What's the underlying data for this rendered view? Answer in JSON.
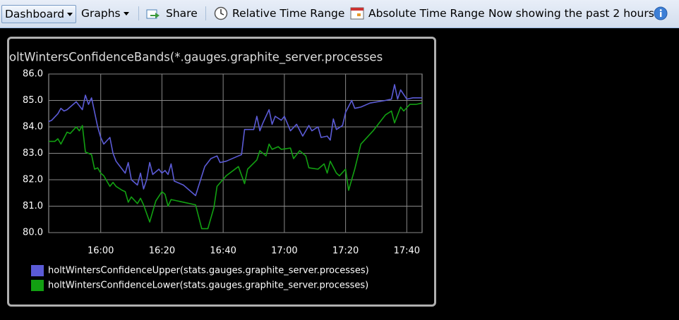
{
  "toolbar": {
    "dashboard": "Dashboard",
    "graphs": "Graphs",
    "share": "Share",
    "relative": "Relative Time Range",
    "absolute": "Absolute Time Range",
    "status": "Now showing the past 2 hours"
  },
  "chart_data": {
    "type": "line",
    "title": "oltWintersConfidenceBands(*.gauges.graphite_server.processes",
    "xlim": [
      "15:43",
      "17:45"
    ],
    "xticks": [
      "16:00",
      "16:20",
      "16:40",
      "17:00",
      "17:20",
      "17:40"
    ],
    "ylim": [
      80,
      86
    ],
    "yticks": [
      {
        "value": 80,
        "label": "80.0"
      },
      {
        "value": 81,
        "label": "81.0"
      },
      {
        "value": 82,
        "label": "82.0"
      },
      {
        "value": 83,
        "label": "83.0"
      },
      {
        "value": 84,
        "label": "84.0"
      },
      {
        "value": 85,
        "label": "85.0"
      },
      {
        "value": 86,
        "label": "86.0"
      }
    ],
    "grid": true,
    "series": [
      {
        "name": "holtWintersConfidenceUpper(stats.gauges.graphite_server.processes)",
        "color": "#5b5bd6",
        "x": [
          "15:43",
          "15:44",
          "15:46",
          "15:47",
          "15:48",
          "15:49",
          "15:52",
          "15:54",
          "15:55",
          "15:56",
          "15:57",
          "15:59",
          "16:00",
          "16:01",
          "16:03",
          "16:04",
          "16:05",
          "16:06",
          "16:08",
          "16:09",
          "16:10",
          "16:12",
          "16:13",
          "16:14",
          "16:15",
          "16:16",
          "16:17",
          "16:19",
          "16:20",
          "16:21",
          "16:22",
          "16:23",
          "16:24",
          "16:27",
          "16:31",
          "16:34",
          "16:36",
          "16:38",
          "16:39",
          "16:41",
          "16:45",
          "16:46",
          "16:47",
          "16:50",
          "16:51",
          "16:52",
          "16:53",
          "16:55",
          "16:56",
          "16:57",
          "16:59",
          "17:00",
          "17:02",
          "17:04",
          "17:06",
          "17:08",
          "17:09",
          "17:11",
          "17:12",
          "17:14",
          "17:15",
          "17:16",
          "17:17",
          "17:19",
          "17:20",
          "17:22",
          "17:23",
          "17:25",
          "17:28",
          "17:33",
          "17:35",
          "17:36",
          "17:37",
          "17:38",
          "17:40",
          "17:42",
          "17:45"
        ],
        "values": [
          84.2,
          84.25,
          84.5,
          84.7,
          84.6,
          84.65,
          84.95,
          84.65,
          85.2,
          84.85,
          85.1,
          84.0,
          83.6,
          83.35,
          83.6,
          83.0,
          82.7,
          82.55,
          82.25,
          82.65,
          82.0,
          81.8,
          82.25,
          81.65,
          82.0,
          82.65,
          82.2,
          82.4,
          82.25,
          82.35,
          82.2,
          82.6,
          81.95,
          81.8,
          81.4,
          82.5,
          82.8,
          82.9,
          82.65,
          82.7,
          82.9,
          82.95,
          83.9,
          83.9,
          84.4,
          83.85,
          84.15,
          84.65,
          84.1,
          84.4,
          84.25,
          84.4,
          83.85,
          84.1,
          83.65,
          84.05,
          83.85,
          84.0,
          83.6,
          83.65,
          83.5,
          84.3,
          83.9,
          84.05,
          84.55,
          85.0,
          84.7,
          84.75,
          84.9,
          85.0,
          85.05,
          85.6,
          85.05,
          85.4,
          85.05,
          85.1,
          85.1
        ]
      },
      {
        "name": "holtWintersConfidenceLower(stats.gauges.graphite_server.processes)",
        "color": "#12a012",
        "x": [
          "15:43",
          "15:45",
          "15:46",
          "15:47",
          "15:49",
          "15:50",
          "15:52",
          "15:53",
          "15:54",
          "15:55",
          "15:57",
          "15:58",
          "15:59",
          "16:00",
          "16:01",
          "16:03",
          "16:04",
          "16:05",
          "16:07",
          "16:08",
          "16:09",
          "16:10",
          "16:12",
          "16:13",
          "16:14",
          "16:16",
          "16:17",
          "16:18",
          "16:20",
          "16:21",
          "16:22",
          "16:23",
          "16:25",
          "16:31",
          "16:33",
          "16:35",
          "16:37",
          "16:38",
          "16:41",
          "16:45",
          "16:47",
          "16:48",
          "16:51",
          "16:52",
          "16:54",
          "16:55",
          "16:56",
          "16:58",
          "16:59",
          "17:02",
          "17:03",
          "17:05",
          "17:07",
          "17:08",
          "17:11",
          "17:13",
          "17:14",
          "17:15",
          "17:17",
          "17:18",
          "17:20",
          "17:21",
          "17:23",
          "17:25",
          "17:29",
          "17:33",
          "17:35",
          "17:36",
          "17:38",
          "17:39",
          "17:41",
          "17:43",
          "17:45"
        ],
        "values": [
          83.45,
          83.45,
          83.55,
          83.35,
          83.8,
          83.75,
          84.0,
          83.85,
          84.05,
          83.05,
          82.95,
          82.4,
          82.45,
          82.25,
          82.15,
          81.75,
          81.9,
          81.75,
          81.6,
          81.55,
          81.15,
          81.35,
          81.1,
          81.3,
          81.05,
          80.4,
          80.8,
          81.2,
          81.55,
          81.45,
          81.0,
          81.25,
          81.2,
          81.05,
          80.15,
          80.15,
          80.95,
          81.75,
          82.15,
          82.5,
          81.85,
          82.4,
          82.75,
          83.1,
          82.9,
          83.35,
          83.15,
          83.25,
          83.15,
          83.2,
          82.8,
          83.1,
          82.9,
          82.45,
          82.4,
          82.6,
          82.25,
          82.7,
          82.25,
          82.15,
          82.4,
          81.6,
          82.4,
          83.35,
          83.85,
          84.45,
          84.6,
          84.15,
          84.75,
          84.6,
          84.85,
          84.85,
          84.9
        ]
      }
    ]
  }
}
